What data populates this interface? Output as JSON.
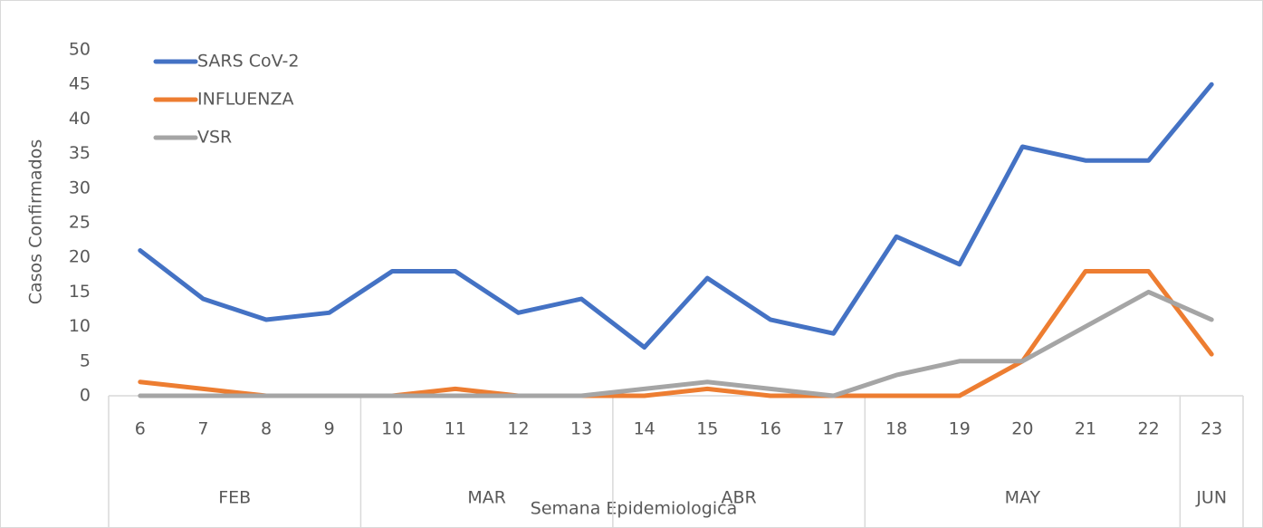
{
  "chart_data": {
    "type": "line",
    "x_label": "Semana Epidemiologica",
    "y_label": "Casos Confirmados",
    "categories": [
      "6",
      "7",
      "8",
      "9",
      "10",
      "11",
      "12",
      "13",
      "14",
      "15",
      "16",
      "17",
      "18",
      "19",
      "20",
      "21",
      "22",
      "23"
    ],
    "groups": [
      {
        "label": "FEB",
        "span": 4
      },
      {
        "label": "MAR",
        "span": 4
      },
      {
        "label": "ABR",
        "span": 4
      },
      {
        "label": "MAY",
        "span": 5
      },
      {
        "label": "JUN",
        "span": 1
      }
    ],
    "series": [
      {
        "name": "SARS CoV-2",
        "color": "#4472c4",
        "values": [
          21,
          14,
          11,
          12,
          18,
          18,
          12,
          14,
          7,
          17,
          11,
          9,
          23,
          19,
          36,
          34,
          34,
          45
        ]
      },
      {
        "name": "INFLUENZA",
        "color": "#ed7d31",
        "values": [
          2,
          1,
          0,
          0,
          0,
          1,
          0,
          0,
          0,
          1,
          0,
          0,
          0,
          0,
          5,
          18,
          18,
          6
        ]
      },
      {
        "name": "VSR",
        "color": "#a5a5a5",
        "values": [
          0,
          0,
          0,
          0,
          0,
          0,
          0,
          0,
          1,
          2,
          1,
          0,
          3,
          5,
          5,
          10,
          15,
          11
        ]
      }
    ],
    "ylim": [
      0,
      50
    ],
    "yticks": [
      0,
      5,
      10,
      15,
      20,
      25,
      30,
      35,
      40,
      45,
      50
    ],
    "grid": false,
    "legend": "upper left"
  }
}
